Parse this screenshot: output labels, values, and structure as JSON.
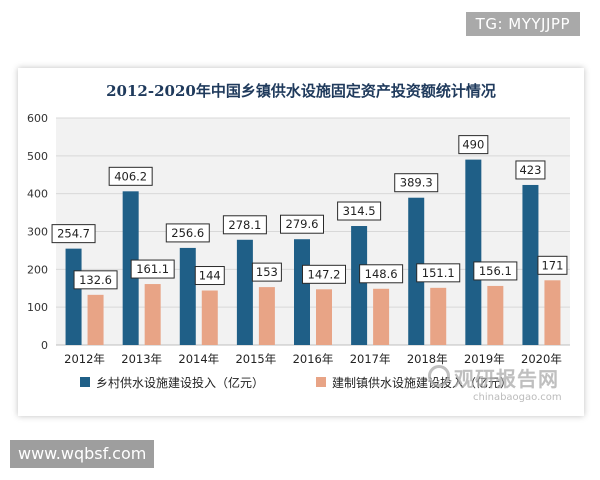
{
  "header": {
    "tag": "TG: MYYJJPP"
  },
  "footer": {
    "site": "www.wqbsf.com"
  },
  "watermark": {
    "brand": "观研报告网",
    "domain": "chinabaogao.com"
  },
  "colors": {
    "rural": "#1f5f87",
    "town": "#e8a486",
    "grid": "#d8d8d8",
    "plot_bg": "#f2f2f2",
    "title": "#1f3a5c"
  },
  "chart_data": {
    "type": "bar",
    "title": "2012-2020年中国乡镇供水设施固定资产投资额统计情况",
    "xlabel": "",
    "ylabel": "",
    "ylim": [
      0,
      600
    ],
    "yticks": [
      "0",
      "100",
      "200",
      "300",
      "400",
      "500",
      "600"
    ],
    "categories": [
      "2012年",
      "2013年",
      "2014年",
      "2015年",
      "2016年",
      "2017年",
      "2018年",
      "2019年",
      "2020年"
    ],
    "series": [
      {
        "name": "乡村供水设施建设投入（亿元）",
        "values": [
          254.7,
          406.2,
          256.6,
          278.1,
          279.6,
          314.5,
          389.3,
          490,
          423
        ]
      },
      {
        "name": "建制镇供水设施建设投入（亿元）",
        "values": [
          132.6,
          161.1,
          144,
          153,
          147.2,
          148.6,
          151.1,
          156.1,
          171
        ]
      }
    ],
    "grid": true,
    "legend": "bottom"
  }
}
